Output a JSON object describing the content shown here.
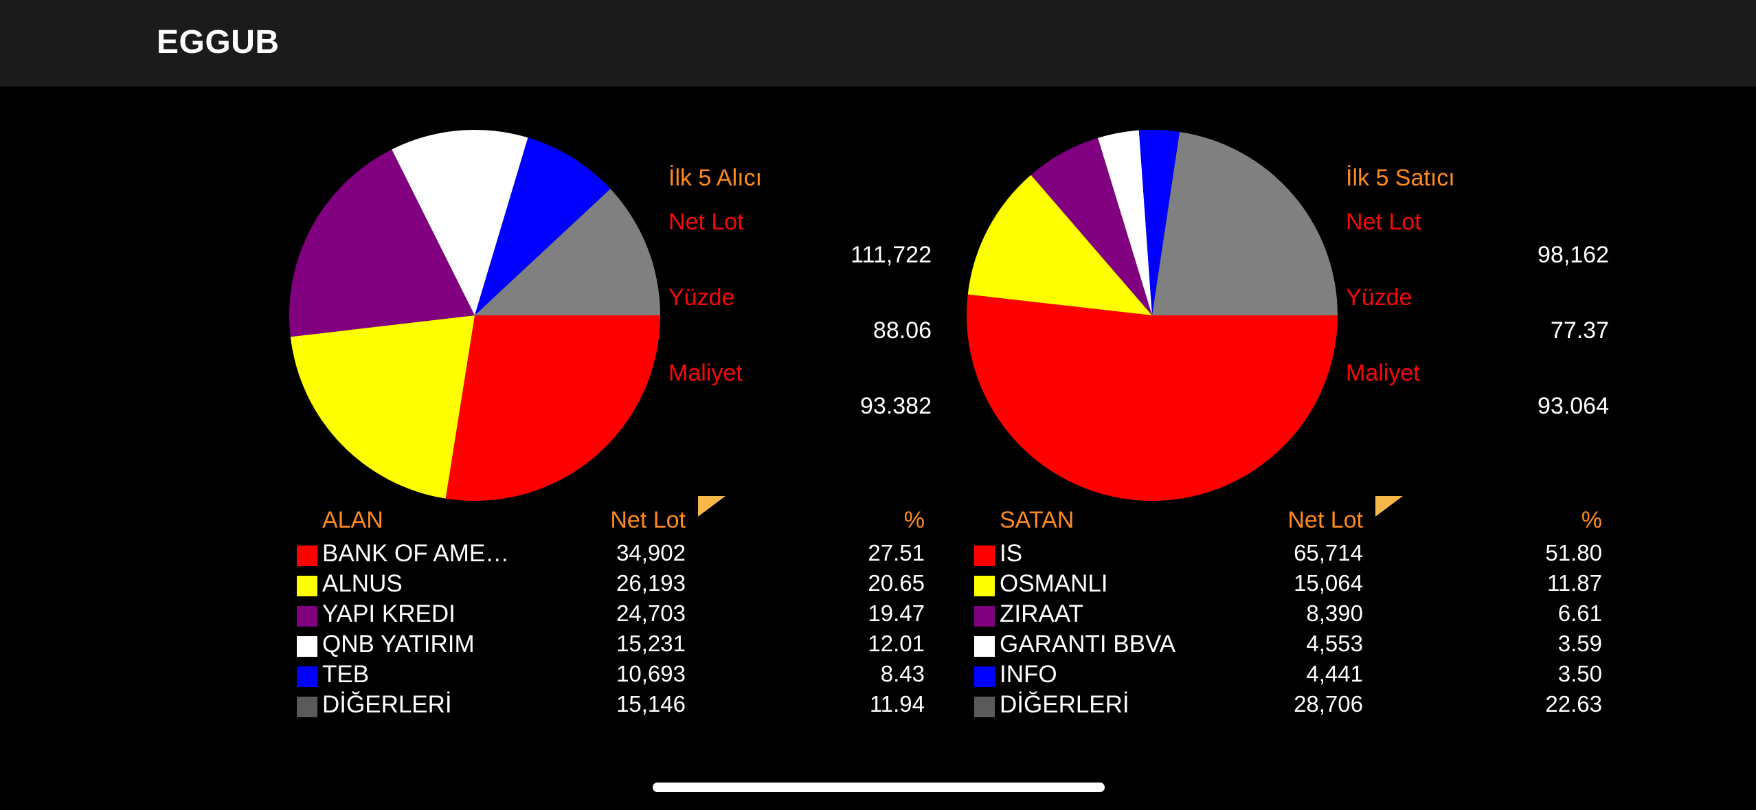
{
  "header": {
    "title": "EGGUB"
  },
  "colors": {
    "header_bg": "#1b1b1b",
    "accent_orange": "#ff8a1e",
    "label_red": "#f50a0a",
    "text": "#ffffff"
  },
  "chart_data": [
    {
      "type": "pie",
      "title": "İlk 5 Alıcı",
      "summary": {
        "net_lot_label": "Net Lot",
        "net_lot": "111,722",
        "pct_label": "Yüzde",
        "pct": "88.06",
        "cost_label": "Maliyet",
        "cost": "93.382"
      },
      "table": {
        "name_header": "ALAN",
        "lot_header": "Net Lot",
        "pct_header": "%",
        "sort_icon": "sort-indicator-icon",
        "rows": [
          {
            "name": "BANK OF AME…",
            "lot": "34,902",
            "pct": "27.51",
            "value": 27.51,
            "color": "#ff0000"
          },
          {
            "name": "ALNUS",
            "lot": "26,193",
            "pct": "20.65",
            "value": 20.65,
            "color": "#ffff00"
          },
          {
            "name": "YAPI KREDI",
            "lot": "24,703",
            "pct": "19.47",
            "value": 19.47,
            "color": "#800080"
          },
          {
            "name": "QNB YATIRIM",
            "lot": "15,231",
            "pct": "12.01",
            "value": 12.01,
            "color": "#ffffff"
          },
          {
            "name": "TEB",
            "lot": "10,693",
            "pct": "8.43",
            "value": 8.43,
            "color": "#0000ff"
          },
          {
            "name": "DİĞERLERİ",
            "lot": "15,146",
            "pct": "11.94",
            "value": 11.94,
            "color": "#808080"
          }
        ]
      }
    },
    {
      "type": "pie",
      "title": "İlk 5 Satıcı",
      "summary": {
        "net_lot_label": "Net Lot",
        "net_lot": "98,162",
        "pct_label": "Yüzde",
        "pct": "77.37",
        "cost_label": "Maliyet",
        "cost": "93.064"
      },
      "table": {
        "name_header": "SATAN",
        "lot_header": "Net Lot",
        "pct_header": "%",
        "sort_icon": "sort-indicator-icon",
        "rows": [
          {
            "name": "IS",
            "lot": "65,714",
            "pct": "51.80",
            "value": 51.8,
            "color": "#ff0000"
          },
          {
            "name": "OSMANLI",
            "lot": "15,064",
            "pct": "11.87",
            "value": 11.87,
            "color": "#ffff00"
          },
          {
            "name": "ZIRAAT",
            "lot": "8,390",
            "pct": "6.61",
            "value": 6.61,
            "color": "#800080"
          },
          {
            "name": "GARANTI BBVA",
            "lot": "4,553",
            "pct": "3.59",
            "value": 3.59,
            "color": "#ffffff"
          },
          {
            "name": "INFO",
            "lot": "4,441",
            "pct": "3.50",
            "value": 3.5,
            "color": "#0000ff"
          },
          {
            "name": "DİĞERLERİ",
            "lot": "28,706",
            "pct": "22.63",
            "value": 22.63,
            "color": "#808080"
          }
        ]
      }
    }
  ]
}
